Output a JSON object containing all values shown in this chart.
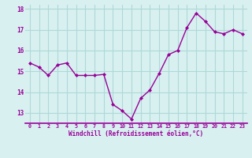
{
  "x": [
    0,
    1,
    2,
    3,
    4,
    5,
    6,
    7,
    8,
    9,
    10,
    11,
    12,
    13,
    14,
    15,
    16,
    17,
    18,
    19,
    20,
    21,
    22,
    23
  ],
  "y": [
    15.4,
    15.2,
    14.8,
    15.3,
    15.4,
    14.8,
    14.8,
    14.8,
    14.85,
    13.4,
    13.1,
    12.7,
    13.7,
    14.1,
    14.9,
    15.8,
    16.0,
    17.1,
    17.8,
    17.4,
    16.9,
    16.8,
    17.0,
    16.8
  ],
  "xlabel": "Windchill (Refroidissement éolien,°C)",
  "xlim": [
    -0.5,
    23.5
  ],
  "ylim": [
    12.5,
    18.2
  ],
  "yticks": [
    13,
    14,
    15,
    16,
    17,
    18
  ],
  "xticks": [
    0,
    1,
    2,
    3,
    4,
    5,
    6,
    7,
    8,
    9,
    10,
    11,
    12,
    13,
    14,
    15,
    16,
    17,
    18,
    19,
    20,
    21,
    22,
    23
  ],
  "line_color": "#990099",
  "marker_color": "#990099",
  "bg_color": "#d8f0f0",
  "grid_color": "#b0d8d8",
  "tick_label_color": "#990099",
  "axis_label_color": "#990099",
  "border_color": "#990099",
  "marker": "D",
  "marker_size": 2,
  "line_width": 1.0
}
